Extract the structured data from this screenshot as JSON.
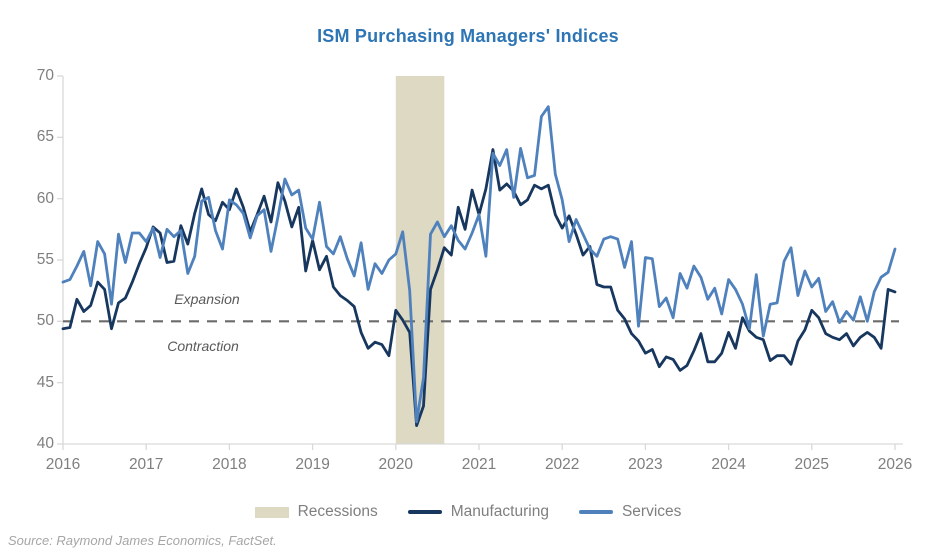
{
  "title": "ISM Purchasing Managers' Indices",
  "annotations": {
    "above_line": "Expansion",
    "below_line": "Contraction"
  },
  "legend": [
    {
      "label": "Recessions",
      "type": "box",
      "color": "#DDD9C3"
    },
    {
      "label": "Manufacturing",
      "type": "line",
      "color": "#17375E"
    },
    {
      "label": "Services",
      "type": "line",
      "color": "#4F81BD"
    }
  ],
  "source": "Source: Raymond James Economics, FactSet.",
  "colors": {
    "title": "#2E75B6",
    "manufacturing": "#17375E",
    "services": "#4F81BD",
    "recession_band": "#DDD9C3",
    "reference_line": "#6B6B6B",
    "axis": "#D9D9D9",
    "tick_label": "#7F7F7F",
    "annotation_text": "#595959",
    "source_text": "#A6A6A6"
  },
  "chart_data": {
    "type": "line",
    "title": "ISM Purchasing Managers' Indices",
    "x_unit": "month",
    "x_start": "2016-01",
    "x_end": "2026-01",
    "x_tick_labels": [
      "2016",
      "2017",
      "2018",
      "2019",
      "2020",
      "2021",
      "2022",
      "2023",
      "2024",
      "2025",
      "2026"
    ],
    "ylim": [
      40,
      70
    ],
    "y_ticks": [
      40,
      45,
      50,
      55,
      60,
      65,
      70
    ],
    "grid": false,
    "legend_position": "bottom",
    "reference_line": {
      "value": 50,
      "style": "dashed",
      "label_above": "Expansion",
      "label_below": "Contraction"
    },
    "recession_band": {
      "from": "2020-01",
      "to": "2020-08"
    },
    "series": [
      {
        "name": "Manufacturing",
        "color": "#17375E",
        "values": [
          49.4,
          49.5,
          51.8,
          50.8,
          51.3,
          53.2,
          52.6,
          49.4,
          51.5,
          51.9,
          53.2,
          54.7,
          56.0,
          57.7,
          57.2,
          54.8,
          54.9,
          57.8,
          56.3,
          58.8,
          60.8,
          58.7,
          58.2,
          59.7,
          59.1,
          60.8,
          59.3,
          57.3,
          58.7,
          60.2,
          58.1,
          61.3,
          59.8,
          57.7,
          59.3,
          54.1,
          56.6,
          54.2,
          55.3,
          52.8,
          52.1,
          51.7,
          51.2,
          49.1,
          47.8,
          48.3,
          48.1,
          47.2,
          50.9,
          50.1,
          49.1,
          41.5,
          43.1,
          52.6,
          54.2,
          56.0,
          55.4,
          59.3,
          57.5,
          60.7,
          58.7,
          60.8,
          64.0,
          60.7,
          61.2,
          60.6,
          59.5,
          59.9,
          61.1,
          60.8,
          61.1,
          58.7,
          57.6,
          58.6,
          57.1,
          55.4,
          56.1,
          53.0,
          52.8,
          52.8,
          50.9,
          50.2,
          49.0,
          48.4,
          47.4,
          47.7,
          46.3,
          47.1,
          46.9,
          46.0,
          46.4,
          47.6,
          49.0,
          46.7,
          46.7,
          47.4,
          49.1,
          47.8,
          50.3,
          49.2,
          48.7,
          48.5,
          46.8,
          47.2,
          47.2,
          46.5,
          48.4,
          49.3,
          50.9,
          50.3,
          49.0,
          48.7,
          48.5,
          49.0,
          48.0,
          48.7,
          49.1,
          48.7,
          47.8,
          52.6,
          52.4
        ]
      },
      {
        "name": "Services",
        "color": "#4F81BD",
        "values": [
          53.2,
          53.4,
          54.5,
          55.7,
          52.9,
          56.5,
          55.5,
          51.4,
          57.1,
          54.8,
          57.2,
          57.2,
          56.5,
          57.6,
          55.2,
          57.5,
          56.9,
          57.4,
          53.9,
          55.3,
          59.8,
          60.1,
          57.4,
          55.9,
          59.9,
          59.5,
          58.8,
          56.8,
          58.6,
          59.1,
          55.7,
          58.5,
          61.6,
          60.3,
          60.7,
          57.6,
          56.7,
          59.7,
          56.1,
          55.5,
          56.9,
          55.1,
          53.7,
          56.4,
          52.6,
          54.7,
          53.9,
          55.0,
          55.5,
          57.3,
          52.5,
          41.8,
          45.4,
          57.1,
          58.1,
          56.9,
          57.8,
          56.6,
          55.9,
          57.2,
          58.7,
          55.3,
          63.7,
          62.7,
          64.0,
          60.1,
          64.1,
          61.7,
          61.9,
          66.7,
          67.5,
          62.0,
          59.9,
          56.5,
          58.3,
          57.1,
          55.9,
          55.3,
          56.7,
          56.9,
          56.7,
          54.4,
          56.5,
          49.6,
          55.2,
          55.1,
          51.2,
          51.9,
          50.3,
          53.9,
          52.7,
          54.5,
          53.6,
          51.8,
          52.7,
          50.6,
          53.4,
          52.6,
          51.4,
          49.4,
          53.8,
          48.8,
          51.4,
          51.5,
          54.9,
          56.0,
          52.1,
          54.1,
          52.8,
          53.5,
          50.8,
          51.6,
          49.9,
          50.8,
          50.1,
          52.0,
          50.0,
          52.4,
          53.6,
          54.0,
          55.9
        ]
      }
    ]
  }
}
